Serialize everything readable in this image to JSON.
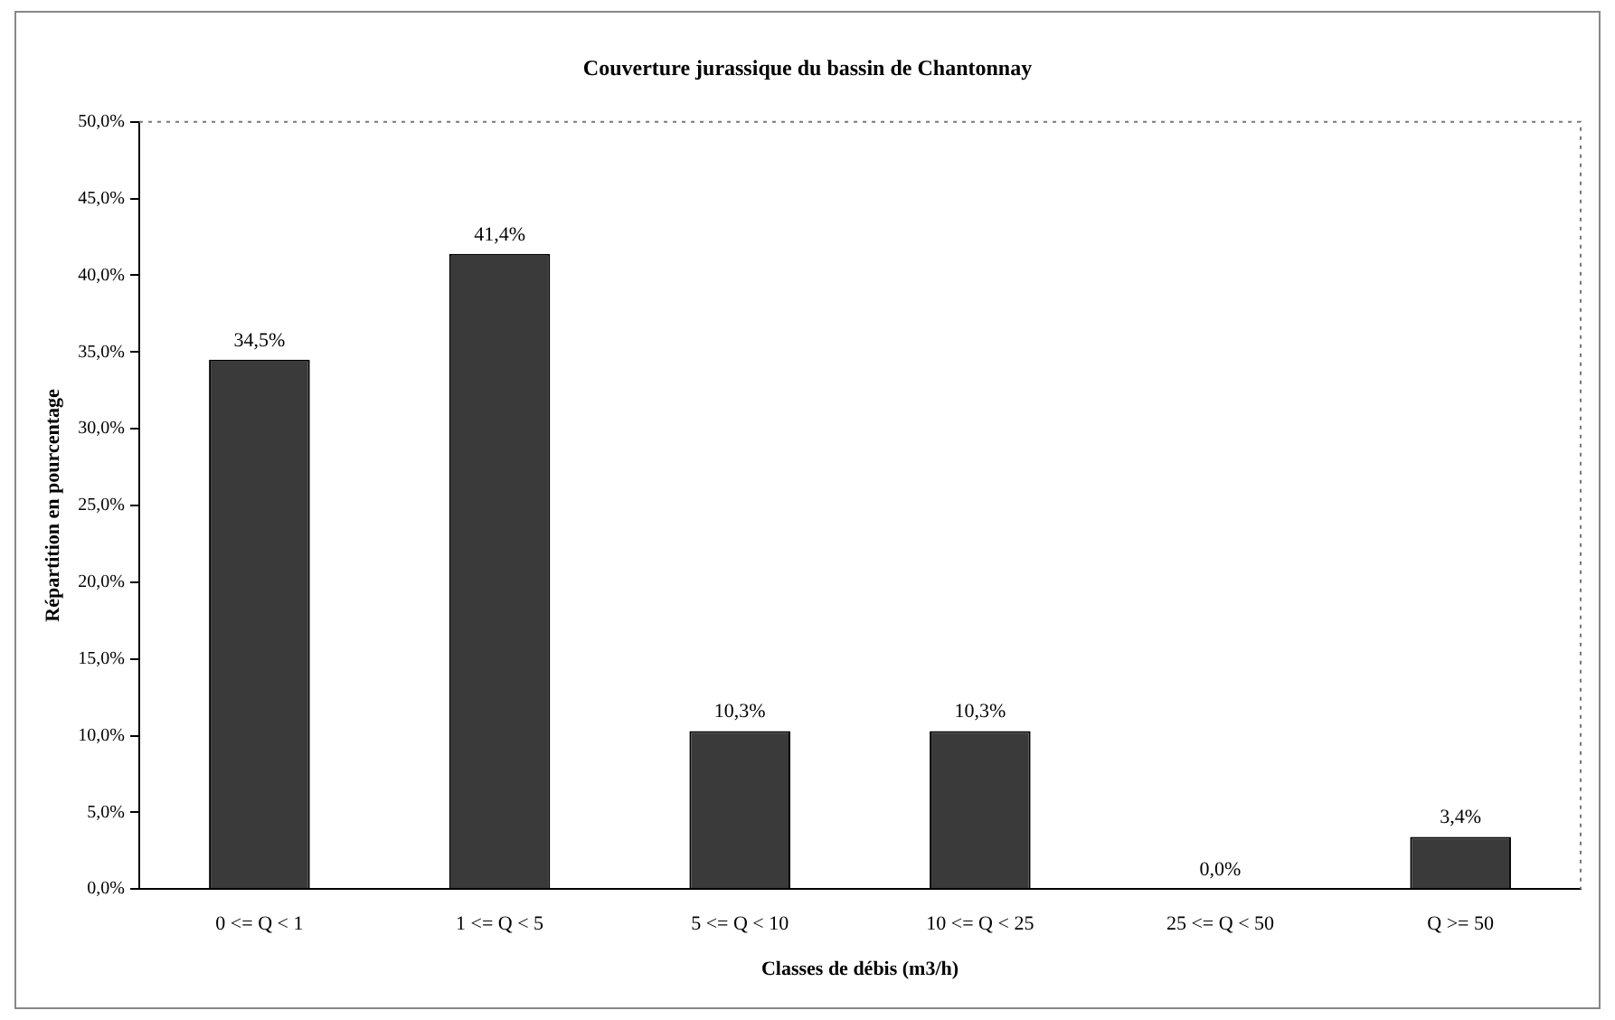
{
  "chart_data": {
    "type": "bar",
    "title": "Couverture jurassique du bassin de Chantonnay",
    "xlabel": "Classes de débis (m3/h)",
    "ylabel": "Répartition en pourcentage",
    "categories": [
      "0 <= Q < 1",
      "1 <= Q < 5",
      "5 <= Q < 10",
      "10 <= Q < 25",
      "25 <= Q < 50",
      "Q >= 50"
    ],
    "values": [
      34.5,
      41.4,
      10.3,
      10.3,
      0,
      3.4
    ],
    "value_labels": [
      "34,5%",
      "41,4%",
      "10,3%",
      "10,3%",
      "0,0%",
      "3,4%"
    ],
    "color": "#3a3a3a",
    "ylim": [
      0,
      50
    ],
    "yticks": [
      {
        "value": 0,
        "label": "0,0%"
      },
      {
        "value": 5,
        "label": "5,0%"
      },
      {
        "value": 10,
        "label": "10,0%"
      },
      {
        "value": 15,
        "label": "15,0%"
      },
      {
        "value": 20,
        "label": "20,0%"
      },
      {
        "value": 25,
        "label": "25,0%"
      },
      {
        "value": 30,
        "label": "30,0%"
      },
      {
        "value": 35,
        "label": "35,0%"
      },
      {
        "value": 40,
        "label": "40,0%"
      },
      {
        "value": 45,
        "label": "45,0%"
      },
      {
        "value": 50,
        "label": "50,0%"
      }
    ],
    "grid": false,
    "legend": false
  }
}
